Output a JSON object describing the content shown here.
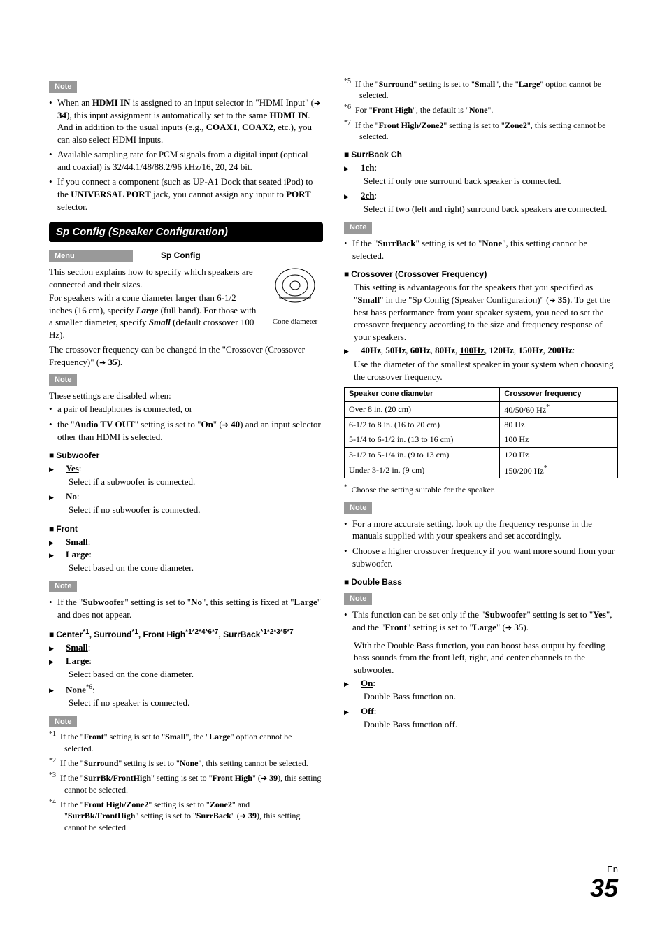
{
  "left": {
    "note1": {
      "label": "Note",
      "bullets": [
        "When an <b>HDMI IN</b> is assigned to an input selector in \"HDMI Input\" (<arrow></arrow> <b>34</b>), this input assignment is automatically set to the same <b>HDMI IN</b>. And in addition to the usual inputs (e.g., <b>COAX1</b>, <b>COAX2</b>, etc.), you can also select HDMI inputs.",
        "Available sampling rate for PCM signals from a digital input (optical and coaxial) is 32/44.1/48/88.2/96 kHz/16, 20, 24 bit.",
        "If you connect a component (such as UP-A1 Dock that seated iPod) to the <b>UNIVERSAL PORT</b> jack, you cannot assign any input to <b>PORT</b> selector."
      ]
    },
    "heading": "Sp Config (Speaker Configuration)",
    "menu": {
      "label": "Menu",
      "value": "Sp Config"
    },
    "intro": [
      "This section explains how to specify which speakers are connected and their sizes.",
      "For speakers with a cone diameter larger than 6-1/2 inches (16 cm), specify <b><i>Large</i></b> (full band). For those with a smaller diameter, specify <b><i>Small</i></b> (default crossover 100 Hz).",
      "The crossover frequency can be changed in the \"Crossover (Crossover Frequency)\" (<arrow></arrow> <b>35</b>)."
    ],
    "cone_caption": "Cone diameter",
    "note2": {
      "label": "Note",
      "lead": "These settings are disabled when:",
      "bullets": [
        "a pair of headphones is connected, or",
        "the \"<b>Audio TV OUT</b>\" setting is set to \"<b>On</b>\" (<arrow></arrow> <b>40</b>) and an input selector other than HDMI is selected."
      ]
    },
    "subwoofer": {
      "title": "Subwoofer",
      "opts": [
        {
          "label": "Yes",
          "def": true,
          "desc": "Select if a subwoofer is connected."
        },
        {
          "label": "No",
          "def": false,
          "desc": "Select if no subwoofer is connected."
        }
      ]
    },
    "front": {
      "title": "Front",
      "opts": [
        {
          "label": "Small",
          "def": true
        },
        {
          "label": "Large",
          "def": false,
          "desc": "Select based on the cone diameter."
        }
      ]
    },
    "note3": {
      "label": "Note",
      "bullets": [
        "If the \"<b>Subwoofer</b>\" setting is set to \"<b>No</b>\", this setting is fixed at \"<b>Large</b>\" and does not appear."
      ]
    },
    "center": {
      "title_html": "Center<sup>*1</sup>, Surround<sup>*1</sup>, Front High<sup>*1*2*4*6*7</sup>, SurrBack<sup>*1*2*3*5*7</sup>",
      "opts": [
        {
          "label": "Small",
          "def": true
        },
        {
          "label": "Large",
          "def": false,
          "desc": "Select based on the cone diameter."
        },
        {
          "label": "None",
          "sup": "*6",
          "def": false,
          "desc": "Select if no speaker is connected."
        }
      ]
    },
    "note4": {
      "label": "Note",
      "footnotes": [
        {
          "mark": "*1",
          "text": "If the \"<b>Front</b>\" setting is set to \"<b>Small</b>\", the \"<b>Large</b>\" option cannot be selected."
        },
        {
          "mark": "*2",
          "text": "If the \"<b>Surround</b>\" setting is set to \"<b>None</b>\", this setting cannot be selected."
        },
        {
          "mark": "*3",
          "text": "If the \"<b>SurrBk/FrontHigh</b>\" setting is set to \"<b>Front High</b>\" (<arrow></arrow> <b>39</b>), this setting cannot be selected."
        },
        {
          "mark": "*4",
          "text": "If the \"<b>Front High/Zone2</b>\" setting is set to \"<b>Zone2</b>\" and \"<b>SurrBk/FrontHigh</b>\" setting is set to \"<b>SurrBack</b>\" (<arrow></arrow> <b>39</b>), this setting cannot be selected."
        }
      ]
    }
  },
  "right": {
    "footnotes_cont": [
      {
        "mark": "*5",
        "text": "If the \"<b>Surround</b>\" setting is set to \"<b>Small</b>\", the \"<b>Large</b>\" option cannot be selected."
      },
      {
        "mark": "*6",
        "text": "For \"<b>Front High</b>\", the default is \"<b>None</b>\"."
      },
      {
        "mark": "*7",
        "text": "If the \"<b>Front High/Zone2</b>\" setting is set to \"<b>Zone2</b>\", this setting cannot be selected."
      }
    ],
    "surrback": {
      "title": "SurrBack Ch",
      "opts": [
        {
          "label": "1ch",
          "def": false,
          "desc": "Select if only one surround back speaker is connected."
        },
        {
          "label": "2ch",
          "def": true,
          "desc": "Select if two (left and right) surround back speakers are connected."
        }
      ]
    },
    "note_sb": {
      "label": "Note",
      "bullets": [
        "If the \"<b>SurrBack</b>\" setting is set to \"<b>None</b>\", this setting cannot be selected."
      ]
    },
    "crossover": {
      "title": "Crossover (Crossover Frequency)",
      "para1": "This setting is advantageous for the speakers that you specified as \"<b>Small</b>\" in the \"Sp Config (Speaker Configuration)\" (<arrow></arrow> <b>35</b>). To get the best bass performance from your speaker system, you need to set the crossover frequency according to the size and frequency response of your speakers.",
      "opts_line": "<b>40Hz</b>, <b>50Hz</b>, <b>60Hz</b>, <b>80Hz</b>, <b><u>100Hz</u></b>, <b>120Hz</b>, <b>150Hz</b>, <b>200Hz</b>:",
      "para2": "Use the diameter of the smallest speaker in your system when choosing the crossover frequency.",
      "table": {
        "headers": [
          "Speaker cone diameter",
          "Crossover frequency"
        ],
        "rows": [
          [
            "Over 8 in. (20 cm)",
            "40/50/60 Hz<sup>*</sup>"
          ],
          [
            "6-1/2 to 8 in. (16 to 20 cm)",
            "80 Hz"
          ],
          [
            "5-1/4 to 6-1/2 in. (13 to 16 cm)",
            "100 Hz"
          ],
          [
            "3-1/2 to 5-1/4 in. (9 to 13 cm)",
            "120 Hz"
          ],
          [
            "Under 3-1/2 in. (9 cm)",
            "150/200 Hz<sup>*</sup>"
          ]
        ]
      },
      "star_note": "Choose the setting suitable for the speaker."
    },
    "note_xo": {
      "label": "Note",
      "bullets": [
        "For a more accurate setting, look up the frequency response in the manuals supplied with your speakers and set accordingly.",
        "Choose a higher crossover frequency if you want more sound from your subwoofer."
      ]
    },
    "dbass": {
      "title": "Double Bass",
      "note_label": "Note",
      "note_bullets": [
        "This function can be set only if the \"<b>Subwoofer</b>\" setting is set to \"<b>Yes</b>\", and the \"<b>Front</b>\" setting is set to \"<b>Large</b>\" (<arrow></arrow> <b>35</b>)."
      ],
      "para": "With the Double Bass function, you can boost bass output by feeding bass sounds from the front left, right, and center channels to the subwoofer.",
      "opts": [
        {
          "label": "On",
          "def": true,
          "desc": "Double Bass function on."
        },
        {
          "label": "Off",
          "def": false,
          "desc": "Double Bass function off."
        }
      ]
    }
  },
  "page": {
    "en": "En",
    "num": "35"
  }
}
